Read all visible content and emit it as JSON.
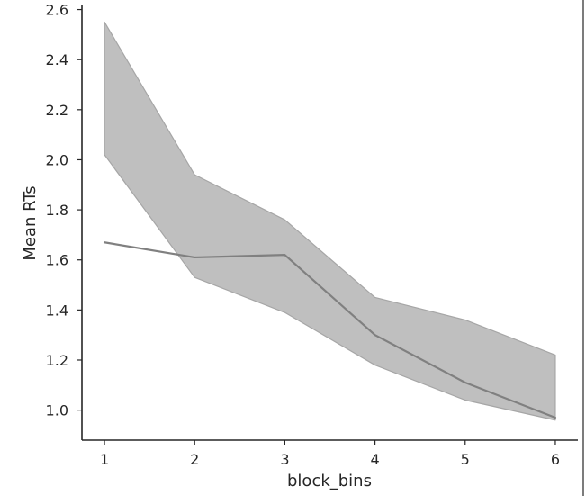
{
  "chart_data": {
    "type": "line",
    "title": "",
    "xlabel": "block_bins",
    "ylabel": "Mean RTs",
    "x": [
      1,
      2,
      3,
      4,
      5,
      6
    ],
    "xticks": [
      "1",
      "2",
      "3",
      "4",
      "5",
      "6"
    ],
    "yticks": [
      "1.0",
      "1.2",
      "1.4",
      "1.6",
      "1.8",
      "2.0",
      "2.2",
      "2.4",
      "2.6"
    ],
    "ylim": [
      0.88,
      2.62
    ],
    "xlim": [
      0.75,
      6.25
    ],
    "grid": false,
    "series": [
      {
        "values": [
          1.67,
          1.61,
          1.62,
          1.3,
          1.11,
          0.97
        ],
        "ci_upper": [
          2.55,
          1.94,
          1.76,
          1.45,
          1.36,
          1.22
        ],
        "ci_lower": [
          2.02,
          1.53,
          1.39,
          1.18,
          1.04,
          0.96
        ],
        "line_color": "#808080",
        "band_color": "#bfbfbf"
      }
    ]
  }
}
